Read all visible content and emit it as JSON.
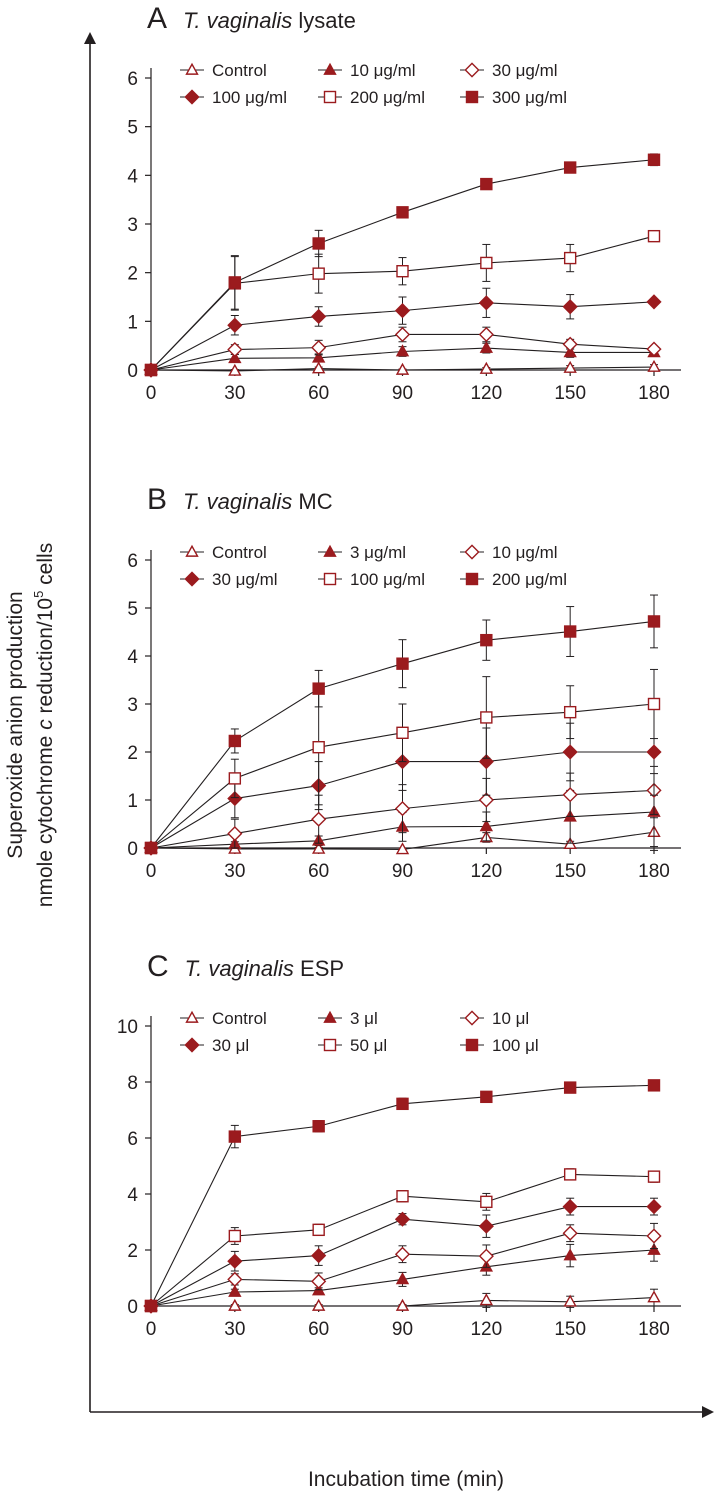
{
  "figure": {
    "xlabel": "Incubation time (min)",
    "ylabel_line1": "Superoxide anion production",
    "ylabel_line2_pre": "nmole cytochrome ",
    "ylabel_line2_italic": "c",
    "ylabel_line2_post": " reduction/10",
    "ylabel_superscript": "5",
    "ylabel_line2_end": " cells"
  },
  "style": {
    "series_color": "#9b1b1e",
    "axis_color": "#231f20"
  },
  "chart_data": [
    {
      "type": "line",
      "panel": "A",
      "title_italic": "T. vaginalis",
      "title_rest": " lysate",
      "xlabel": "Incubation time (min)",
      "x": [
        0,
        30,
        60,
        90,
        120,
        150,
        180
      ],
      "xlim": [
        0,
        190
      ],
      "ylim": [
        0,
        6
      ],
      "yticks": [
        0,
        1,
        2,
        3,
        4,
        5,
        6
      ],
      "legend": "top",
      "series": [
        {
          "name": "Control",
          "marker": "triangle-open",
          "values": [
            0,
            -0.02,
            0.03,
            0.0,
            0.02,
            0.04,
            0.06
          ],
          "err": [
            0,
            0.03,
            0.03,
            0.02,
            0.03,
            0.05,
            0.05
          ]
        },
        {
          "name": "10 μg/ml",
          "marker": "triangle-filled",
          "values": [
            0,
            0.24,
            0.25,
            0.38,
            0.45,
            0.36,
            0.36
          ],
          "err": [
            0,
            0.08,
            0.08,
            0.1,
            0.1,
            0.1,
            0.08
          ]
        },
        {
          "name": "30 μg/ml",
          "marker": "diamond-open",
          "values": [
            0,
            0.42,
            0.46,
            0.73,
            0.73,
            0.53,
            0.43
          ],
          "err": [
            0,
            0.1,
            0.15,
            0.15,
            0.15,
            0.1,
            0.06
          ]
        },
        {
          "name": "100 μg/ml",
          "marker": "diamond-filled",
          "values": [
            0,
            0.92,
            1.1,
            1.22,
            1.38,
            1.3,
            1.4
          ],
          "err": [
            0,
            0.2,
            0.2,
            0.28,
            0.3,
            0.25,
            0.05
          ]
        },
        {
          "name": "200 μg/ml",
          "marker": "square-open",
          "values": [
            0,
            1.78,
            1.98,
            2.03,
            2.2,
            2.3,
            2.75
          ],
          "err": [
            0,
            0.55,
            0.4,
            0.28,
            0.38,
            0.28,
            0.05
          ]
        },
        {
          "name": "300 μg/ml",
          "marker": "square-filled",
          "values": [
            0,
            1.8,
            2.6,
            3.24,
            3.82,
            4.16,
            4.32
          ],
          "err": [
            0,
            0.55,
            0.27,
            0.05,
            0.05,
            0.05,
            0.12
          ]
        }
      ]
    },
    {
      "type": "line",
      "panel": "B",
      "title_italic": "T. vaginalis",
      "title_rest": " MC",
      "xlabel": "Incubation time (min)",
      "x": [
        0,
        30,
        60,
        90,
        120,
        150,
        180
      ],
      "xlim": [
        0,
        190
      ],
      "ylim": [
        0,
        6
      ],
      "yticks": [
        0,
        1,
        2,
        3,
        4,
        5,
        6
      ],
      "legend": "top",
      "series": [
        {
          "name": "Control",
          "marker": "triangle-open",
          "values": [
            0,
            -0.02,
            -0.02,
            -0.03,
            0.22,
            0.08,
            0.33
          ],
          "err": [
            0,
            0.03,
            0.03,
            0.03,
            0.1,
            0.06,
            0.3
          ]
        },
        {
          "name": "3 μg/ml",
          "marker": "triangle-filled",
          "values": [
            0,
            0.08,
            0.15,
            0.44,
            0.45,
            0.65,
            0.75
          ],
          "err": [
            0,
            0.05,
            0.1,
            0.3,
            0.3,
            0.55,
            0.8
          ]
        },
        {
          "name": "10 μg/ml",
          "marker": "diamond-open",
          "values": [
            0,
            0.3,
            0.6,
            0.82,
            1.0,
            1.11,
            1.2
          ],
          "err": [
            0,
            0.3,
            0.5,
            0.5,
            0.45,
            0.45,
            0.5
          ]
        },
        {
          "name": "30 μg/ml",
          "marker": "diamond-filled",
          "values": [
            0,
            1.03,
            1.3,
            1.8,
            1.8,
            2.0,
            2.0
          ],
          "err": [
            0,
            0.4,
            0.5,
            0.6,
            0.7,
            0.6,
            0.9
          ]
        },
        {
          "name": "100 μg/ml",
          "marker": "square-open",
          "values": [
            0,
            1.45,
            2.1,
            2.4,
            2.72,
            2.83,
            3.0
          ],
          "err": [
            0,
            0.4,
            1.2,
            0.6,
            0.85,
            0.55,
            0.72
          ]
        },
        {
          "name": "200 μg/ml",
          "marker": "square-filled",
          "values": [
            0,
            2.23,
            3.32,
            3.84,
            4.33,
            4.51,
            4.72
          ],
          "err": [
            0,
            0.25,
            0.38,
            0.5,
            0.42,
            0.52,
            0.55
          ]
        }
      ]
    },
    {
      "type": "line",
      "panel": "C",
      "title_italic": "T. vaginalis",
      "title_rest": " ESP",
      "xlabel": "Incubation time (min)",
      "x": [
        0,
        30,
        60,
        90,
        120,
        150,
        180
      ],
      "xlim": [
        0,
        190
      ],
      "ylim": [
        0,
        10
      ],
      "yticks": [
        0,
        2,
        4,
        6,
        8,
        10
      ],
      "legend": "top",
      "series": [
        {
          "name": "Control",
          "marker": "triangle-open",
          "values": [
            0,
            0.0,
            0.0,
            0.0,
            0.2,
            0.15,
            0.3
          ],
          "err": [
            0,
            0.05,
            0.05,
            0.05,
            0.25,
            0.2,
            0.3
          ]
        },
        {
          "name": "3 μl",
          "marker": "triangle-filled",
          "values": [
            0,
            0.5,
            0.55,
            0.95,
            1.4,
            1.8,
            2.0
          ],
          "err": [
            0,
            0.1,
            0.1,
            0.25,
            0.3,
            0.4,
            0.4
          ]
        },
        {
          "name": "10 μl",
          "marker": "diamond-open",
          "values": [
            0,
            0.95,
            0.88,
            1.85,
            1.78,
            2.6,
            2.5
          ],
          "err": [
            0,
            0.2,
            0.3,
            0.3,
            0.4,
            0.3,
            0.45
          ]
        },
        {
          "name": "30 μl",
          "marker": "diamond-filled",
          "values": [
            0,
            1.6,
            1.8,
            3.1,
            2.85,
            3.55,
            3.55
          ],
          "err": [
            0,
            0.35,
            0.35,
            0.2,
            0.4,
            0.3,
            0.3
          ]
        },
        {
          "name": "50 μl",
          "marker": "square-open",
          "values": [
            0,
            2.5,
            2.72,
            3.92,
            3.72,
            4.7,
            4.62
          ],
          "err": [
            0,
            0.3,
            0.2,
            0.2,
            0.3,
            0.2,
            0.2
          ]
        },
        {
          "name": "100 μl",
          "marker": "square-filled",
          "values": [
            0,
            6.05,
            6.42,
            7.22,
            7.47,
            7.8,
            7.88
          ],
          "err": [
            0,
            0.4,
            0.2,
            0.2,
            0.15,
            0.05,
            0.05
          ]
        }
      ]
    }
  ]
}
